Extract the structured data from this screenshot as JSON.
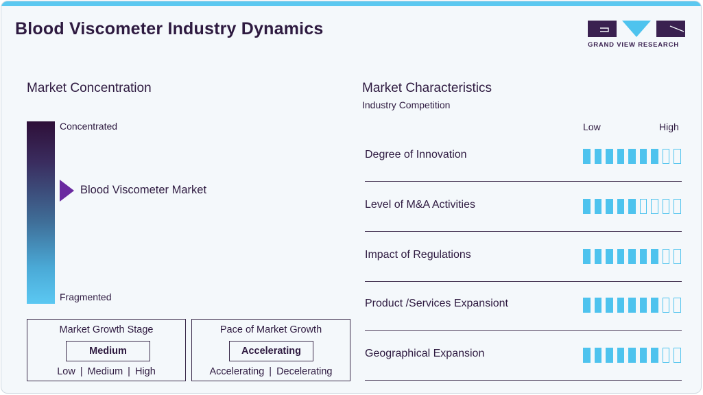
{
  "title": "Blood Viscometer Industry Dynamics",
  "logo": {
    "text": "GRAND VIEW RESEARCH"
  },
  "colors": {
    "accent": "#5bc8f0",
    "dark": "#2e1a40",
    "marker": "#6a2aa0"
  },
  "market_concentration": {
    "heading": "Market Concentration",
    "top_label": "Concentrated",
    "bottom_label": "Fragmented",
    "marker_label": "Blood Viscometer Market",
    "marker_level": 0.62
  },
  "growth_stage": {
    "title": "Market Growth Stage",
    "value": "Medium",
    "scale": [
      "Low",
      "Medium",
      "High"
    ],
    "separator": "|"
  },
  "growth_pace": {
    "title": "Pace of Market Growth",
    "value": "Accelerating",
    "scale": [
      "Accelerating",
      "Decelerating"
    ],
    "separator": "|"
  },
  "market_characteristics": {
    "heading": "Market Characteristics",
    "subheading": "Industry Competition",
    "low_label": "Low",
    "high_label": "High",
    "segments_total": 9,
    "items": [
      {
        "label": "Degree of Innovation",
        "level": 7
      },
      {
        "label": "Level of M&A Activities",
        "level": 5
      },
      {
        "label": "Impact of Regulations",
        "level": 7
      },
      {
        "label": "Product /Services Expansiont",
        "level": 7
      },
      {
        "label": "Geographical Expansion",
        "level": 7
      }
    ]
  }
}
